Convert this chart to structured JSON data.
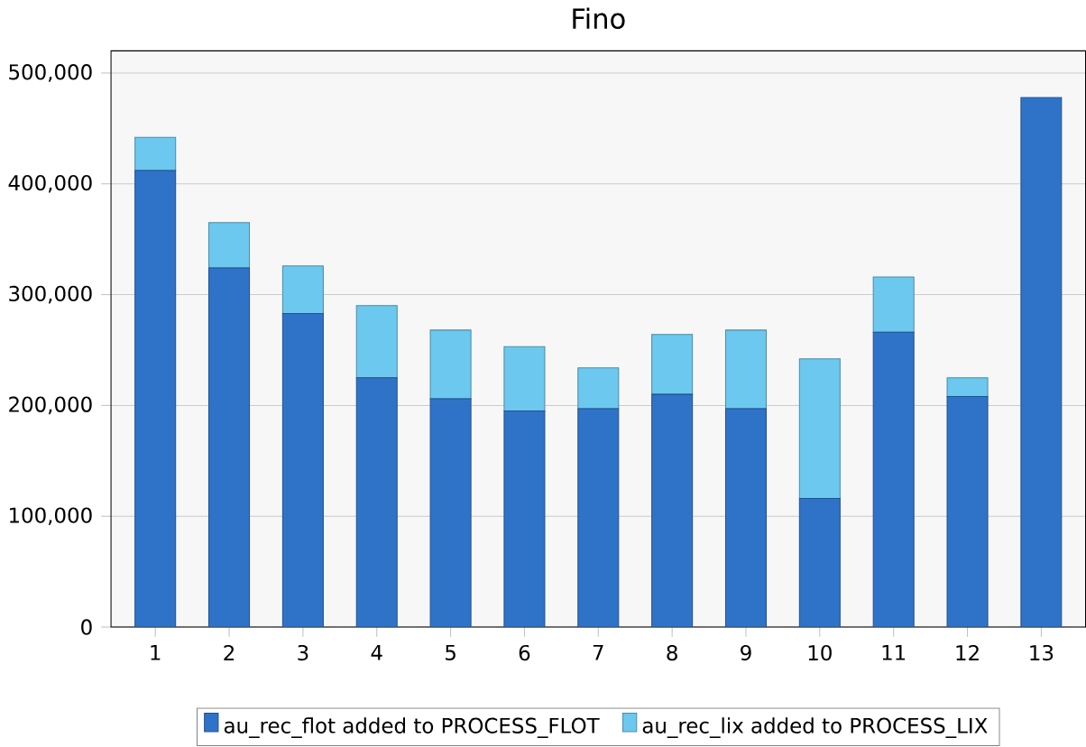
{
  "chart_data": {
    "type": "bar",
    "title": "Fino",
    "stacked": true,
    "grid": "y",
    "legend": "bottom",
    "categories": [
      "1",
      "2",
      "3",
      "4",
      "5",
      "6",
      "7",
      "8",
      "9",
      "10",
      "11",
      "12",
      "13"
    ],
    "ylim": [
      0,
      520000
    ],
    "yticks": [
      {
        "value": 0,
        "label": "0"
      },
      {
        "value": 100000,
        "label": "100,000"
      },
      {
        "value": 200000,
        "label": "200,000"
      },
      {
        "value": 300000,
        "label": "300,000"
      },
      {
        "value": 400000,
        "label": "400,000"
      },
      {
        "value": 500000,
        "label": "500,000"
      }
    ],
    "series": [
      {
        "name": "au_rec_flot added to PROCESS_FLOT",
        "color": "#2f73c9",
        "values": [
          412000,
          324000,
          283000,
          225000,
          206000,
          195000,
          197000,
          210000,
          197000,
          116000,
          266000,
          208000,
          478000
        ]
      },
      {
        "name": "au_rec_lix added to PROCESS_LIX",
        "color": "#6cc8ef",
        "values": [
          30000,
          41000,
          43000,
          65000,
          62000,
          58000,
          37000,
          54000,
          71000,
          126000,
          50000,
          17000,
          0
        ]
      }
    ]
  }
}
